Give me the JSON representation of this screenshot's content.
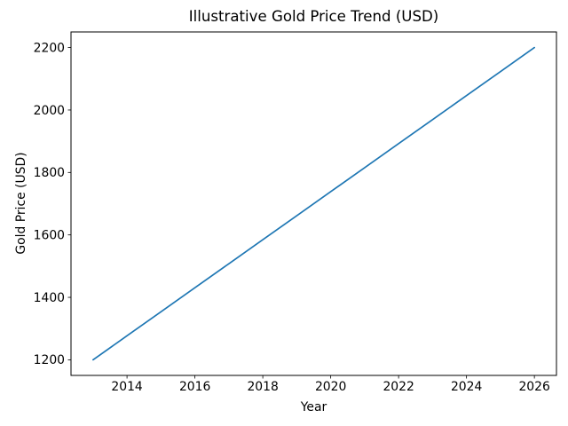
{
  "chart_data": {
    "type": "line",
    "title": "Illustrative Gold Price Trend (USD)",
    "xlabel": "Year",
    "ylabel": "Gold Price (USD)",
    "x": [
      2013,
      2014,
      2015,
      2016,
      2017,
      2018,
      2019,
      2020,
      2021,
      2022,
      2023,
      2024,
      2025,
      2026
    ],
    "series": [
      {
        "name": "gold-price",
        "color": "#1f77b4",
        "values": [
          1200.0,
          1276.9,
          1353.8,
          1430.8,
          1507.7,
          1584.6,
          1661.5,
          1738.5,
          1815.4,
          1892.3,
          1969.2,
          2046.2,
          2123.1,
          2200.0
        ]
      }
    ],
    "xlim": [
      2012.35,
      2026.65
    ],
    "ylim": [
      1150,
      2250
    ],
    "xticks": [
      "2014",
      "2016",
      "2018",
      "2020",
      "2022",
      "2024",
      "2026"
    ],
    "xtick_values": [
      2014,
      2016,
      2018,
      2020,
      2022,
      2024,
      2026
    ],
    "yticks": [
      "1200",
      "1400",
      "1600",
      "1800",
      "2000",
      "2200"
    ],
    "ytick_values": [
      1200,
      1400,
      1600,
      1800,
      2000,
      2200
    ],
    "grid": false,
    "legend": "none",
    "background_color": "#ffffff",
    "spine_color": "#000000"
  }
}
